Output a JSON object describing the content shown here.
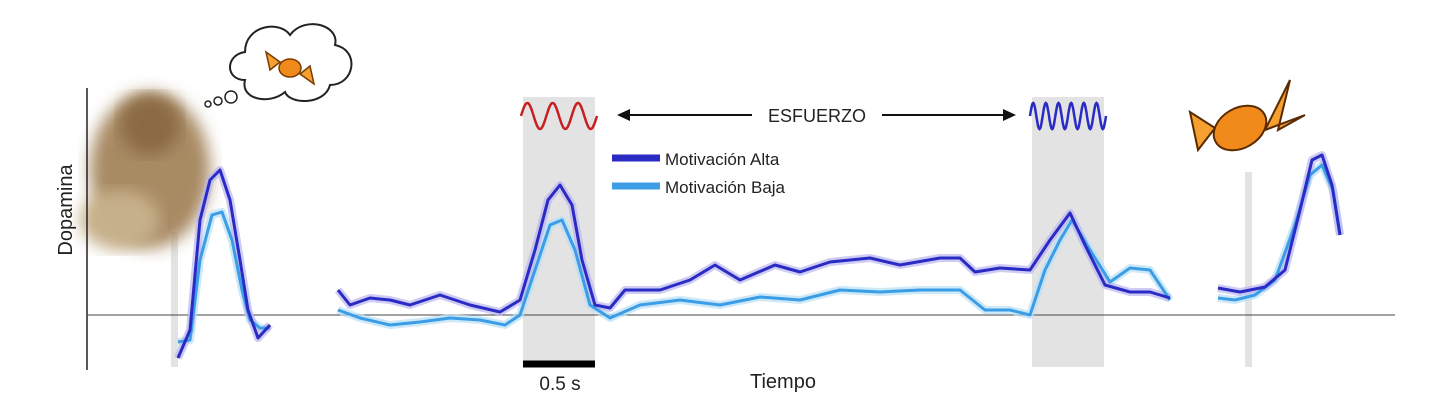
{
  "y_axis_label": "Dopamina",
  "x_axis_label": "Tiempo",
  "scale_bar_label": "0.5 s",
  "effort_label": "ESFUERZO",
  "legend": [
    "Motivación Alta",
    "Motivación Baja"
  ]
}
